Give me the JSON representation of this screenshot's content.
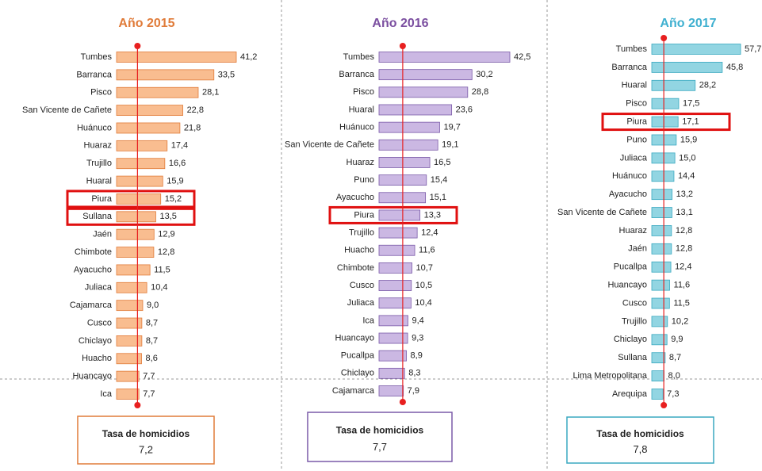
{
  "chart_data": [
    {
      "type": "bar",
      "title": "Año 2015",
      "color": "#f9bd90",
      "edge": "#e07b39",
      "title_color": "#e07b39",
      "categories": [
        "Tumbes",
        "Barranca",
        "Pisco",
        "San Vicente de Cañete",
        "Huánuco",
        "Huaraz",
        "Trujillo",
        "Huaral",
        "Piura",
        "Sullana",
        "Jaén",
        "Chimbote",
        "Ayacucho",
        "Juliaca",
        "Cajamarca",
        "Cusco",
        "Chiclayo",
        "Huacho",
        "Huancayo",
        "Ica"
      ],
      "values": [
        41.2,
        33.5,
        28.1,
        22.8,
        21.8,
        17.4,
        16.6,
        15.9,
        15.2,
        13.5,
        12.9,
        12.8,
        11.5,
        10.4,
        9.0,
        8.7,
        8.7,
        8.6,
        7.7,
        7.7
      ],
      "value_labels": [
        "41,2",
        "33,5",
        "28,1",
        "22,8",
        "21,8",
        "17,4",
        "16,6",
        "15,9",
        "15,2",
        "13,5",
        "12,9",
        "12,8",
        "11,5",
        "10,4",
        "9,0",
        "8,7",
        "8,7",
        "8,6",
        "7,7",
        "7,7"
      ],
      "highlight": [
        8,
        9
      ],
      "reference": {
        "label": "Tasa de homicidios",
        "value": 7.2,
        "value_label": "7,2"
      }
    },
    {
      "type": "bar",
      "title": "Año 2016",
      "color": "#cbb8e3",
      "edge": "#7a5aa8",
      "title_color": "#7b4fa0",
      "categories": [
        "Tumbes",
        "Barranca",
        "Pisco",
        "Huaral",
        "Huánuco",
        "San Vicente de Cañete",
        "Huaraz",
        "Puno",
        "Ayacucho",
        "Piura",
        "Trujillo",
        "Huacho",
        "Chimbote",
        "Cusco",
        "Juliaca",
        "Ica",
        "Huancayo",
        "Pucallpa",
        "Chiclayo",
        "Cajamarca"
      ],
      "values": [
        42.5,
        30.2,
        28.8,
        23.6,
        19.7,
        19.1,
        16.5,
        15.4,
        15.1,
        13.3,
        12.4,
        11.6,
        10.7,
        10.5,
        10.4,
        9.4,
        9.3,
        8.9,
        8.3,
        7.9
      ],
      "value_labels": [
        "42,5",
        "30,2",
        "28,8",
        "23,6",
        "19,7",
        "19,1",
        "16,5",
        "15,4",
        "15,1",
        "13,3",
        "12,4",
        "11,6",
        "10,7",
        "10,5",
        "10,4",
        "9,4",
        "9,3",
        "8,9",
        "8,3",
        "7,9"
      ],
      "highlight": [
        9
      ],
      "reference": {
        "label": "Tasa de homicidios",
        "value": 7.7,
        "value_label": "7,7"
      }
    },
    {
      "type": "bar",
      "title": "Año 2017",
      "color": "#92d5e2",
      "edge": "#3aa9c0",
      "title_color": "#3fb0d0",
      "categories": [
        "Tumbes",
        "Barranca",
        "Huaral",
        "Pisco",
        "Piura",
        "Puno",
        "Juliaca",
        "Huánuco",
        "Ayacucho",
        "San Vicente de Cañete",
        "Huaraz",
        "Jaén",
        "Pucallpa",
        "Huancayo",
        "Cusco",
        "Trujillo",
        "Chiclayo",
        "Sullana",
        "Lima Metropolitana",
        "Arequipa"
      ],
      "values": [
        57.7,
        45.8,
        28.2,
        17.5,
        17.1,
        15.9,
        15.0,
        14.4,
        13.2,
        13.1,
        12.8,
        12.8,
        12.4,
        11.6,
        11.5,
        10.2,
        9.9,
        8.7,
        8.0,
        7.3
      ],
      "value_labels": [
        "57,7",
        "45,8",
        "28,2",
        "17,5",
        "17,1",
        "15,9",
        "15,0",
        "14,4",
        "13,2",
        "13,1",
        "12,8",
        "12,8",
        "12,4",
        "11,6",
        "11,5",
        "10,2",
        "9,9",
        "8,7",
        "8,0",
        "7,3"
      ],
      "highlight": [
        4
      ],
      "reference": {
        "label": "Tasa de homicidios",
        "value": 7.8,
        "value_label": "7,8"
      }
    }
  ]
}
